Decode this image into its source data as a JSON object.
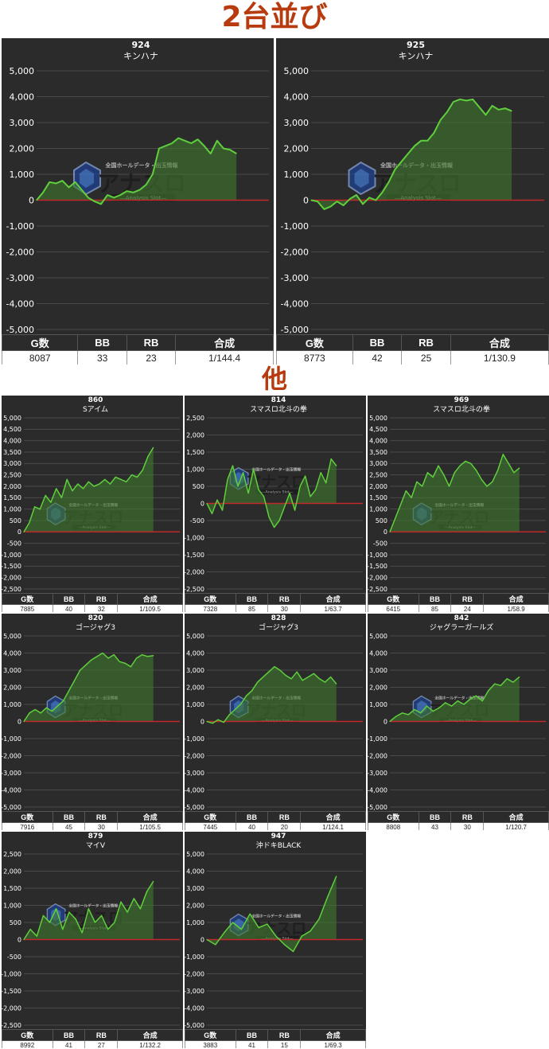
{
  "headings": {
    "pair": "2台並び",
    "other": "他"
  },
  "table_headers": [
    "G数",
    "BB",
    "RB",
    "合成"
  ],
  "watermark": {
    "top_text": "全国ホールデータ・出玉情報",
    "logo_text": "アナスロ",
    "sub_text": "―Analysis Slot―"
  },
  "colors": {
    "background": "#2b2b2b",
    "grid": "#4a4a4a",
    "line": "#5fcf3c",
    "fill": "#3f7a2e",
    "zero_line": "#c0282a",
    "heading": "#b83a0f"
  },
  "chart_data": [
    {
      "type": "area",
      "machine_no": "924",
      "title": "キンハナ",
      "ylim": [
        -5000,
        5000
      ],
      "yticks": [
        "5,000",
        "4,000",
        "3,000",
        "2,000",
        "1,000",
        "0",
        "-1,000",
        "-2,000",
        "-3,000",
        "-4,000",
        "-5,000"
      ],
      "values": [
        0,
        300,
        700,
        650,
        750,
        500,
        700,
        400,
        100,
        -50,
        -150,
        200,
        100,
        200,
        350,
        300,
        400,
        600,
        1000,
        2000,
        2100,
        2200,
        2400,
        2300,
        2200,
        2350,
        2100,
        1800,
        2300,
        2000,
        1950,
        1800
      ],
      "stats": {
        "games": "8087",
        "bb": "33",
        "rb": "23",
        "combined": "1/144.4"
      }
    },
    {
      "type": "area",
      "machine_no": "925",
      "title": "キンハナ",
      "ylim": [
        -5000,
        5000
      ],
      "yticks": [
        "5,000",
        "4,000",
        "3,000",
        "2,000",
        "1,000",
        "0",
        "-1,000",
        "-2,000",
        "-3,000",
        "-4,000",
        "-5,000"
      ],
      "values": [
        0,
        -50,
        -350,
        -250,
        -50,
        -200,
        50,
        200,
        -150,
        100,
        0,
        300,
        700,
        1200,
        1500,
        1800,
        2100,
        2300,
        2300,
        2600,
        3100,
        3400,
        3800,
        3900,
        3850,
        3900,
        3600,
        3300,
        3650,
        3500,
        3550,
        3450
      ],
      "stats": {
        "games": "8773",
        "bb": "42",
        "rb": "25",
        "combined": "1/130.9"
      }
    },
    {
      "type": "area",
      "machine_no": "860",
      "title": "Sアイム",
      "ylim": [
        -2500,
        5000
      ],
      "yticks": [
        "5,000",
        "4,500",
        "4,000",
        "3,500",
        "3,000",
        "2,500",
        "2,000",
        "1,500",
        "1,000",
        "500",
        "0",
        "-500",
        "-1,000",
        "-1,500",
        "-2,000",
        "-2,500"
      ],
      "values": [
        0,
        400,
        1100,
        1000,
        1600,
        1300,
        1900,
        1500,
        2300,
        1800,
        2100,
        1900,
        2200,
        2000,
        2100,
        2300,
        2100,
        2400,
        2300,
        2200,
        2500,
        2400,
        2700,
        3300,
        3700
      ],
      "stats": {
        "games": "7885",
        "bb": "40",
        "rb": "32",
        "combined": "1/109.5"
      }
    },
    {
      "type": "area",
      "machine_no": "814",
      "title": "スマスロ北斗の拳",
      "ylim": [
        -2500,
        2500
      ],
      "yticks": [
        "2,500",
        "2,000",
        "1,500",
        "1,000",
        "500",
        "0",
        "-500",
        "-1,000",
        "-1,500",
        "-2,000",
        "-2,500"
      ],
      "values": [
        0,
        -300,
        100,
        -200,
        700,
        1100,
        500,
        900,
        300,
        1000,
        400,
        200,
        -400,
        -700,
        -500,
        -100,
        300,
        -200,
        500,
        800,
        200,
        400,
        900,
        600,
        1300,
        1100
      ],
      "stats": {
        "games": "7328",
        "bb": "85",
        "rb": "30",
        "combined": "1/63.7"
      }
    },
    {
      "type": "area",
      "machine_no": "969",
      "title": "スマスロ北斗の拳",
      "ylim": [
        -2500,
        5000
      ],
      "yticks": [
        "5,000",
        "4,500",
        "4,000",
        "3,500",
        "3,000",
        "2,500",
        "2,000",
        "1,500",
        "1,000",
        "500",
        "0",
        "-500",
        "-1,000",
        "-1,500",
        "-2,000",
        "-2,500"
      ],
      "values": [
        0,
        600,
        1200,
        1800,
        1500,
        2200,
        2000,
        2600,
        2400,
        2900,
        2500,
        2000,
        2600,
        2900,
        3100,
        3000,
        2700,
        2300,
        2000,
        2200,
        2700,
        3400,
        3000,
        2600,
        2800
      ],
      "stats": {
        "games": "6415",
        "bb": "85",
        "rb": "24",
        "combined": "1/58.9"
      }
    },
    {
      "type": "area",
      "machine_no": "820",
      "title": "ゴージャグ3",
      "ylim": [
        -5000,
        5000
      ],
      "yticks": [
        "5,000",
        "4,000",
        "3,000",
        "2,000",
        "1,000",
        "0",
        "-1,000",
        "-2,000",
        "-3,000",
        "-4,000",
        "-5,000"
      ],
      "values": [
        0,
        500,
        700,
        500,
        800,
        600,
        900,
        1200,
        1800,
        2400,
        3000,
        3300,
        3600,
        3800,
        4000,
        3700,
        3900,
        3500,
        3400,
        3200,
        3700,
        3900,
        3800,
        3850
      ],
      "stats": {
        "games": "7916",
        "bb": "45",
        "rb": "30",
        "combined": "1/105.5"
      }
    },
    {
      "type": "area",
      "machine_no": "828",
      "title": "ゴージャグ3",
      "ylim": [
        -5000,
        5000
      ],
      "yticks": [
        "5,000",
        "4,000",
        "3,000",
        "2,000",
        "1,000",
        "0",
        "-1,000",
        "-2,000",
        "-3,000",
        "-4,000",
        "-5,000"
      ],
      "values": [
        0,
        -100,
        100,
        -50,
        400,
        700,
        1000,
        1500,
        1800,
        2300,
        2600,
        2900,
        3200,
        3000,
        2700,
        2500,
        2900,
        2400,
        2600,
        2800,
        2500,
        2300,
        2600,
        2200
      ],
      "stats": {
        "games": "7445",
        "bb": "40",
        "rb": "20",
        "combined": "1/124.1"
      }
    },
    {
      "type": "area",
      "machine_no": "842",
      "title": "ジャグラーガールズ",
      "ylim": [
        -5000,
        5000
      ],
      "yticks": [
        "5,000",
        "4,000",
        "3,000",
        "2,000",
        "1,000",
        "0",
        "-1,000",
        "-2,000",
        "-3,000",
        "-4,000",
        "-5,000"
      ],
      "values": [
        0,
        300,
        500,
        400,
        700,
        500,
        900,
        600,
        800,
        1100,
        900,
        1200,
        1000,
        1300,
        1500,
        1200,
        1800,
        2200,
        2100,
        2500,
        2300,
        2600
      ],
      "stats": {
        "games": "8808",
        "bb": "43",
        "rb": "30",
        "combined": "1/120.7"
      }
    },
    {
      "type": "area",
      "machine_no": "879",
      "title": "マイV",
      "ylim": [
        -2500,
        2500
      ],
      "yticks": [
        "2,500",
        "2,000",
        "1,500",
        "1,000",
        "500",
        "0",
        "-500",
        "-1,000",
        "-1,500",
        "-2,000",
        "-2,500"
      ],
      "values": [
        0,
        300,
        100,
        700,
        500,
        900,
        300,
        800,
        600,
        200,
        900,
        500,
        700,
        300,
        500,
        1100,
        800,
        1200,
        900,
        1400,
        1700
      ],
      "stats": {
        "games": "8992",
        "bb": "41",
        "rb": "27",
        "combined": "1/132.2"
      }
    },
    {
      "type": "area",
      "machine_no": "947",
      "title": "沖ドキBLACK",
      "ylim": [
        -5000,
        5000
      ],
      "yticks": [
        "5,000",
        "4,000",
        "3,000",
        "2,000",
        "1,000",
        "0",
        "-1,000",
        "-2,000",
        "-3,000",
        "-4,000",
        "-5,000"
      ],
      "values": [
        0,
        -300,
        400,
        1000,
        600,
        1500,
        700,
        900,
        200,
        -300,
        -700,
        200,
        500,
        1200,
        2500,
        3700
      ],
      "stats": {
        "games": "3883",
        "bb": "41",
        "rb": "15",
        "combined": "1/69.3"
      }
    }
  ]
}
